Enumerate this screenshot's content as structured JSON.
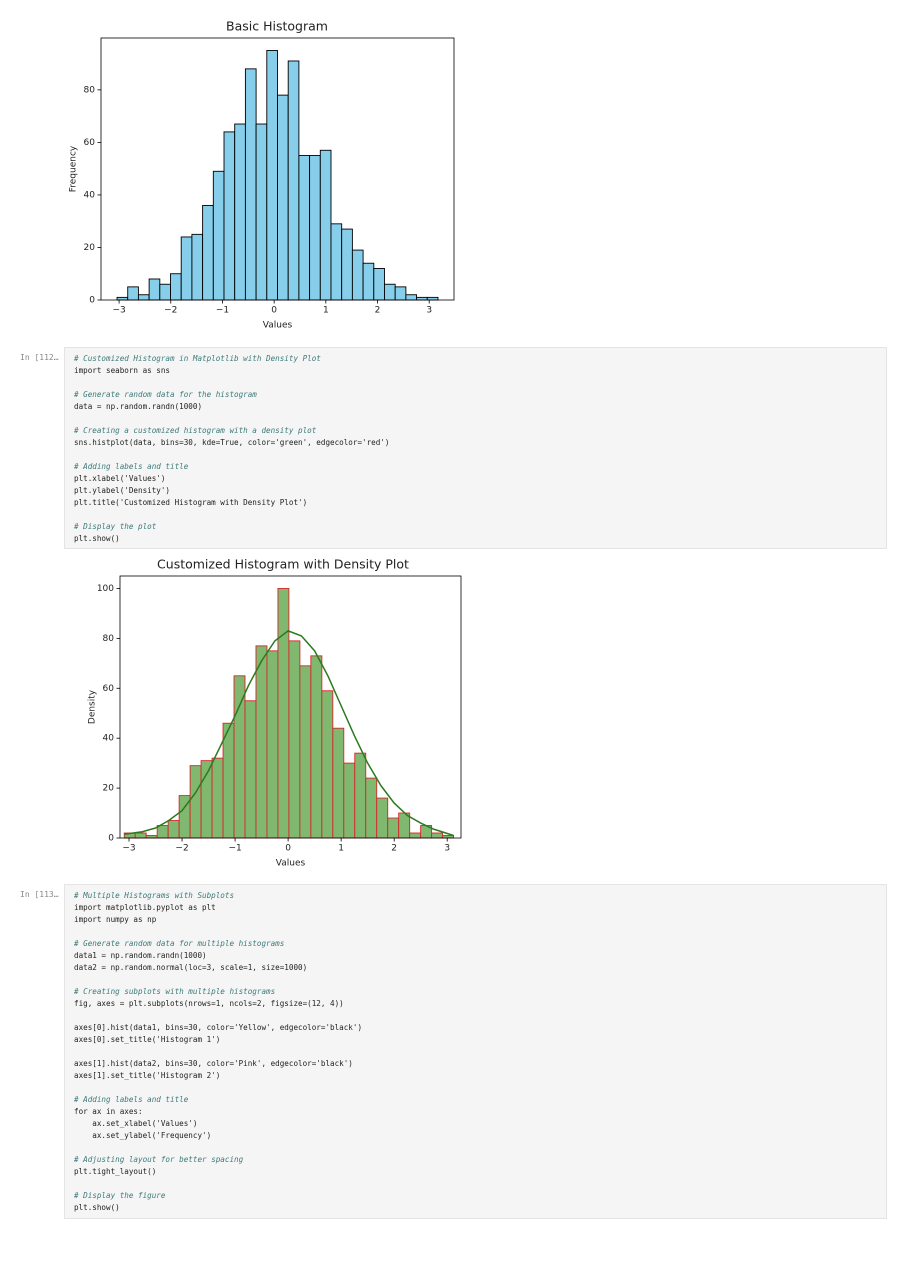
{
  "chart_data": [
    {
      "type": "histogram",
      "title": "Basic Histogram",
      "x_label": "Values",
      "y_label": "Frequency",
      "bins": [
        -3.04,
        -2.833,
        -2.626,
        -2.419,
        -2.212,
        -2.005,
        -1.798,
        -1.591,
        -1.384,
        -1.177,
        -0.97,
        -0.763,
        -0.556,
        -0.349,
        -0.142,
        0.065,
        0.272,
        0.479,
        0.686,
        0.893,
        1.1,
        1.307,
        1.514,
        1.721,
        1.928,
        2.135,
        2.342,
        2.549,
        2.756,
        2.963,
        3.17
      ],
      "values": [
        1,
        5,
        2,
        8,
        6,
        10,
        24,
        25,
        36,
        49,
        64,
        67,
        88,
        67,
        95,
        78,
        91,
        55,
        55,
        57,
        29,
        27,
        19,
        14,
        12,
        6,
        5,
        2,
        1,
        1
      ],
      "color": "#87ceeb",
      "edgecolor": "#000000",
      "xlim": [
        -3.35,
        3.48
      ],
      "xticks": [
        {
          "value": -3,
          "label": "−3"
        },
        {
          "value": -2,
          "label": "−2"
        },
        {
          "value": -1,
          "label": "−1"
        },
        0,
        1,
        2,
        3
      ],
      "ylim": [
        0,
        99.75
      ],
      "yticks": [
        0,
        20,
        40,
        60,
        80
      ],
      "grid": false
    },
    {
      "type": "histogram",
      "title": "Customized Histogram with Density Plot",
      "x_label": "Values",
      "y_label": "Density",
      "bins": [
        -3.09,
        -2.883,
        -2.676,
        -2.469,
        -2.262,
        -2.055,
        -1.848,
        -1.641,
        -1.434,
        -1.227,
        -1.02,
        -0.813,
        -0.606,
        -0.399,
        -0.192,
        0.015,
        0.222,
        0.429,
        0.636,
        0.843,
        1.05,
        1.257,
        1.464,
        1.671,
        1.878,
        2.085,
        2.292,
        2.499,
        2.706,
        2.913,
        3.12
      ],
      "values": [
        2,
        2,
        1,
        5,
        7,
        17,
        29,
        31,
        32,
        46,
        65,
        55,
        77,
        75,
        100,
        79,
        69,
        73,
        59,
        44,
        30,
        34,
        24,
        16,
        8,
        10,
        2,
        5,
        2,
        1
      ],
      "color": "#80b870",
      "edgecolor": "#d62728",
      "kde": {
        "color": "#2a7a1e",
        "x": [
          -3.09,
          -2.75,
          -2.5,
          -2.25,
          -2,
          -1.75,
          -1.5,
          -1.25,
          -1,
          -0.75,
          -0.5,
          -0.25,
          0,
          0.25,
          0.5,
          0.75,
          1,
          1.25,
          1.5,
          1.75,
          2,
          2.25,
          2.5,
          2.75,
          3.12
        ],
        "y": [
          1.5,
          2.5,
          4,
          7,
          11,
          18,
          27,
          38,
          49,
          61,
          71,
          79,
          83,
          81,
          75,
          65,
          53,
          41,
          30,
          21,
          14,
          9,
          6,
          3.5,
          1
        ]
      },
      "xlim": [
        -3.17,
        3.26
      ],
      "xticks": [
        {
          "value": -3,
          "label": "−3"
        },
        {
          "value": -2,
          "label": "−2"
        },
        {
          "value": -1,
          "label": "−1"
        },
        0,
        1,
        2,
        3
      ],
      "ylim": [
        0,
        105
      ],
      "yticks": [
        0,
        20,
        40,
        60,
        80,
        100
      ],
      "grid": false
    }
  ],
  "cells": [
    {
      "prompt": "In [112…",
      "blocks": [
        [
          "# Customized Histogram in Matplotlib with Density Plot",
          "import seaborn as sns"
        ],
        [
          "# Generate random data for the histogram",
          "data = np.random.randn(1000)"
        ],
        [
          "# Creating a customized histogram with a density plot",
          "sns.histplot(data, bins=30, kde=True, color='green', edgecolor='red')"
        ],
        [
          "# Adding labels and title",
          "plt.xlabel('Values')",
          "plt.ylabel('Density')",
          "plt.title('Customized Histogram with Density Plot')"
        ],
        [
          "# Display the plot",
          "plt.show()"
        ]
      ]
    },
    {
      "prompt": "In [113…",
      "blocks": [
        [
          "# Multiple Histograms with Subplots",
          "import matplotlib.pyplot as plt",
          "import numpy as np"
        ],
        [
          "# Generate random data for multiple histograms",
          "data1 = np.random.randn(1000)",
          "data2 = np.random.normal(loc=3, scale=1, size=1000)"
        ],
        [
          "# Creating subplots with multiple histograms",
          "fig, axes = plt.subplots(nrows=1, ncols=2, figsize=(12, 4))"
        ],
        [
          "axes[0].hist(data1, bins=30, color='Yellow', edgecolor='black')",
          "axes[0].set_title('Histogram 1')"
        ],
        [
          "axes[1].hist(data2, bins=30, color='Pink', edgecolor='black')",
          "axes[1].set_title('Histogram 2')"
        ],
        [
          "# Adding labels and title",
          "for ax in axes:",
          "    ax.set_xlabel('Values')",
          "    ax.set_ylabel('Frequency')"
        ],
        [
          "# Adjusting layout for better spacing",
          "plt.tight_layout()"
        ],
        [
          "# Display the figure",
          "plt.show()"
        ]
      ]
    }
  ]
}
